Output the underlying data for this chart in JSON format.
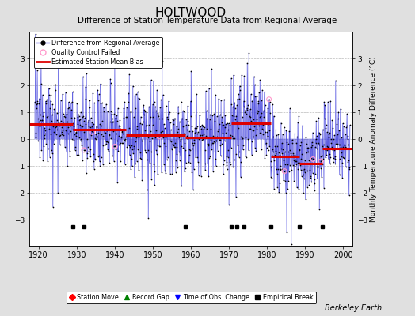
{
  "title": "HOLTWOOD",
  "subtitle": "Difference of Station Temperature Data from Regional Average",
  "ylabel": "Monthly Temperature Anomaly Difference (°C)",
  "xlabel_years": [
    1920,
    1930,
    1940,
    1950,
    1960,
    1970,
    1980,
    1990,
    2000
  ],
  "ylim": [
    -4,
    4
  ],
  "xlim": [
    1917.5,
    2002.5
  ],
  "yticks": [
    -3,
    -2,
    -1,
    0,
    1,
    2,
    3
  ],
  "background_color": "#e0e0e0",
  "plot_bg_color": "#ffffff",
  "line_color": "#4444dd",
  "dot_color": "#000000",
  "bias_color": "#dd0000",
  "qc_color": "#ff99cc",
  "footer": "Berkeley Earth",
  "segments": [
    {
      "x_start": 1917.5,
      "x_end": 1929.0,
      "bias": 0.55
    },
    {
      "x_start": 1929.0,
      "x_end": 1943.0,
      "bias": 0.35
    },
    {
      "x_start": 1943.0,
      "x_end": 1958.5,
      "bias": 0.15
    },
    {
      "x_start": 1958.5,
      "x_end": 1970.5,
      "bias": 0.05
    },
    {
      "x_start": 1970.5,
      "x_end": 1981.0,
      "bias": 0.6
    },
    {
      "x_start": 1981.0,
      "x_end": 1988.5,
      "bias": -0.65
    },
    {
      "x_start": 1988.5,
      "x_end": 1994.5,
      "bias": -0.9
    },
    {
      "x_start": 1994.5,
      "x_end": 2002.5,
      "bias": -0.35
    }
  ],
  "empirical_breaks": [
    1929.0,
    1932.0,
    1958.5,
    1970.5,
    1972.0,
    1974.0,
    1981.0,
    1988.5,
    1994.5
  ],
  "station_moves": [],
  "record_gaps": [],
  "time_obs_changes": []
}
